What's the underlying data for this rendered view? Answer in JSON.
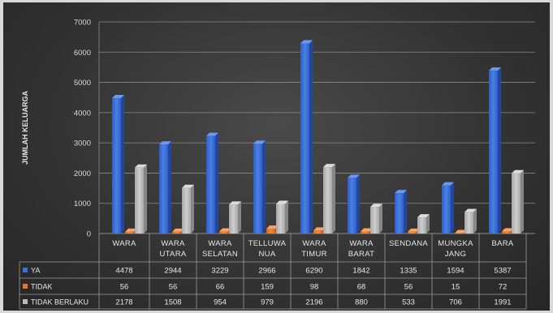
{
  "chart_data": {
    "type": "bar",
    "title": "",
    "ylabel": "JUMLAH KELUARGA",
    "ylim": [
      0,
      7000
    ],
    "yticks": [
      "0",
      "1000",
      "2000",
      "3000",
      "4000",
      "5000",
      "6000",
      "7000"
    ],
    "grid": true,
    "legend": "data-table-left",
    "categories": [
      [
        "WARA"
      ],
      [
        "WARA",
        "UTARA"
      ],
      [
        "WARA",
        "SELATAN"
      ],
      [
        "TELLUWA",
        "NUA"
      ],
      [
        "WARA",
        "TIMUR"
      ],
      [
        "WARA",
        "BARAT"
      ],
      [
        "SENDANA"
      ],
      [
        "MUNGKA",
        "JANG"
      ],
      [
        "BARA"
      ]
    ],
    "series": [
      {
        "name": "YA",
        "color": "#3c6fd6",
        "values": [
          4478,
          2944,
          3229,
          2966,
          6290,
          1842,
          1335,
          1594,
          5387
        ]
      },
      {
        "name": "TIDAK",
        "color": "#e8762d",
        "values": [
          56,
          56,
          66,
          159,
          98,
          68,
          56,
          15,
          72
        ]
      },
      {
        "name": "TIDAK BERLAKU",
        "color": "#b9b9b9",
        "values": [
          2178,
          1508,
          954,
          979,
          2196,
          880,
          533,
          706,
          1991
        ]
      }
    ]
  }
}
